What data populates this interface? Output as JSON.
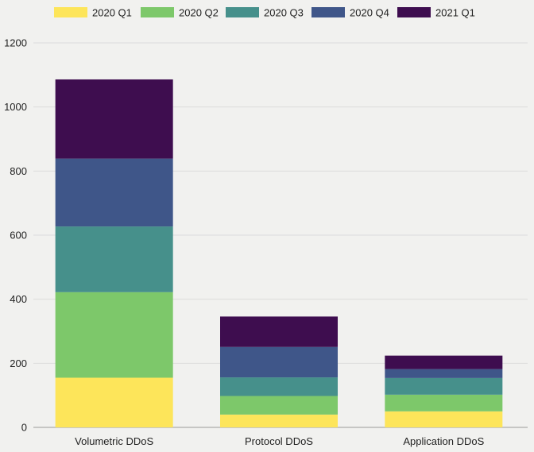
{
  "chart_data": {
    "type": "bar",
    "stacked": true,
    "title": "",
    "xlabel": "",
    "ylabel": "",
    "ylim": [
      0,
      1200
    ],
    "yticks": [
      0,
      200,
      400,
      600,
      800,
      1000,
      1200
    ],
    "grid": true,
    "legend_position": "top",
    "categories": [
      "Volumetric DDoS",
      "Protocol DDoS",
      "Application DDoS"
    ],
    "series": [
      {
        "name": "2020 Q1",
        "color": "#fde55a",
        "values": [
          155,
          40,
          50
        ]
      },
      {
        "name": "2020 Q2",
        "color": "#7dc86a",
        "values": [
          267,
          58,
          52
        ]
      },
      {
        "name": "2020 Q3",
        "color": "#46908b",
        "values": [
          205,
          58,
          52
        ]
      },
      {
        "name": "2020 Q4",
        "color": "#3f5689",
        "values": [
          212,
          95,
          28
        ]
      },
      {
        "name": "2021 Q1",
        "color": "#3e0d4f",
        "values": [
          247,
          95,
          42
        ]
      }
    ]
  }
}
